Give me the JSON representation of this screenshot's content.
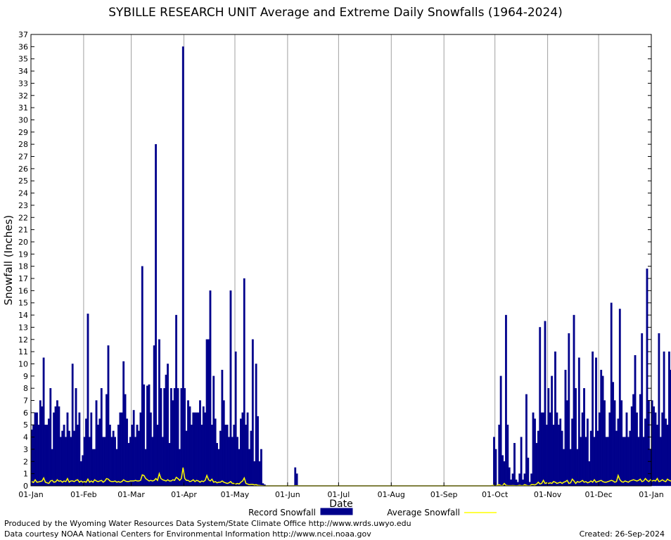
{
  "footer": {
    "left_line1": "Produced by the Wyoming Water Resources Data System/State Climate Office http://www.wrds.uwyo.edu",
    "left_line2": "Data courtesy NOAA National Centers for Environmental Information http://www.ncei.noaa.gov",
    "created": "Created:  26-Sep-2024"
  },
  "chart_data": {
    "type": "bar",
    "title": "SYBILLE RESEARCH UNIT Average and Extreme Daily Snowfalls (1964-2024)",
    "xlabel": "Date",
    "ylabel": "Snowfall (Inches)",
    "ylim": [
      0,
      37
    ],
    "y_ticks": [
      0,
      1,
      2,
      3,
      4,
      5,
      6,
      7,
      8,
      9,
      10,
      11,
      12,
      13,
      14,
      15,
      16,
      17,
      18,
      19,
      20,
      21,
      22,
      23,
      24,
      25,
      26,
      27,
      28,
      29,
      30,
      31,
      32,
      33,
      34,
      35,
      36,
      37
    ],
    "x_tick_labels": [
      "01-Jan",
      "01-Feb",
      "01-Mar",
      "01-Apr",
      "01-May",
      "01-Jun",
      "01-Jul",
      "01-Aug",
      "01-Sep",
      "01-Oct",
      "01-Nov",
      "01-Dec",
      "01-Jan"
    ],
    "x_tick_days": [
      0,
      31,
      59,
      90,
      120,
      151,
      181,
      212,
      243,
      273,
      304,
      334,
      365
    ],
    "grid": true,
    "legend_position": "bottom",
    "colors": {
      "record": "#00008b",
      "average": "#ffff00",
      "grid": "#a0a0a0"
    },
    "series": [
      {
        "name": "Record Snowfall",
        "type": "bar",
        "values": [
          4.6,
          5.0,
          6.0,
          6.0,
          5.0,
          7.0,
          6.5,
          10.5,
          5.0,
          5.0,
          5.5,
          8.0,
          3.0,
          6.0,
          6.5,
          7.0,
          6.5,
          4.0,
          4.5,
          5.0,
          4.0,
          6.0,
          4.5,
          4.0,
          10.0,
          4.5,
          8.0,
          5.0,
          6.0,
          2.0,
          2.5,
          4.0,
          5.5,
          14.1,
          4.0,
          6.0,
          3.0,
          3.0,
          7.0,
          5.0,
          5.5,
          8.0,
          4.0,
          4.0,
          7.5,
          11.5,
          5.0,
          4.0,
          4.5,
          4.0,
          3.0,
          5.0,
          6.0,
          6.0,
          10.2,
          7.5,
          5.5,
          3.5,
          4.0,
          5.0,
          6.2,
          4.0,
          5.0,
          4.5,
          6.0,
          18.0,
          8.3,
          3.0,
          8.2,
          8.3,
          6.0,
          4.0,
          11.5,
          28.0,
          5.0,
          12.0,
          8.0,
          4.0,
          8.0,
          9.1,
          10.0,
          3.5,
          8.0,
          7.0,
          8.0,
          14.0,
          8.0,
          3.0,
          8.0,
          36.0,
          8.0,
          4.5,
          7.0,
          6.5,
          5.0,
          6.0,
          6.0,
          6.0,
          6.0,
          7.0,
          5.0,
          6.5,
          6.0,
          12.0,
          12.0,
          16.0,
          5.0,
          9.0,
          5.5,
          3.5,
          3.0,
          4.5,
          9.5,
          7.0,
          5.0,
          5.0,
          4.0,
          16.0,
          4.0,
          5.0,
          11.0,
          4.0,
          3.0,
          5.5,
          6.0,
          17.0,
          5.0,
          6.0,
          3.0,
          4.5,
          12.0,
          2.0,
          10.0,
          5.7,
          2.0,
          3.0,
          0.2,
          0.1,
          0,
          0,
          0,
          0,
          0,
          0,
          0,
          0,
          0,
          0,
          0,
          0,
          0,
          0,
          0,
          0,
          0,
          1.5,
          1.0,
          0,
          0,
          0,
          0,
          0,
          0,
          0,
          0,
          0,
          0,
          0,
          0,
          0,
          0,
          0,
          0,
          0,
          0,
          0,
          0,
          0,
          0,
          0,
          0,
          0,
          0,
          0,
          0,
          0,
          0,
          0,
          0,
          0,
          0,
          0,
          0,
          0,
          0,
          0,
          0,
          0,
          0,
          0,
          0,
          0,
          0,
          0,
          0,
          0,
          0,
          0,
          0,
          0,
          0,
          0,
          0,
          0,
          0,
          0,
          0,
          0,
          0,
          0,
          0,
          0,
          0,
          0,
          0,
          0,
          0,
          0,
          0,
          0,
          0,
          0,
          0,
          0,
          0,
          0,
          0,
          0,
          0,
          0,
          0,
          0,
          0,
          0,
          0,
          0,
          0,
          0,
          0,
          0,
          0,
          0,
          0,
          0,
          0,
          0,
          0,
          0,
          0,
          0,
          0,
          0,
          0,
          0,
          0,
          0,
          0,
          0,
          0,
          0,
          0,
          0,
          4.0,
          3.0,
          0,
          5.0,
          9.0,
          2.5,
          2.0,
          14.0,
          5.0,
          1.5,
          0.5,
          1.0,
          3.5,
          0.5,
          0.3,
          1.0,
          4.0,
          0.5,
          1.0,
          7.5,
          2.3,
          0.3,
          1.0,
          6.0,
          5.5,
          3.5,
          4.5,
          13.0,
          6.0,
          6.0,
          13.5,
          5.0,
          8.0,
          6.0,
          9.0,
          5.0,
          11.0,
          6.0,
          5.0,
          5.5,
          4.5,
          3.0,
          9.5,
          7.0,
          12.5,
          3.0,
          5.5,
          14.0,
          8.0,
          3.0,
          10.5,
          4.0,
          6.0,
          8.0,
          4.0,
          5.5,
          2.0,
          4.5,
          11.0,
          4.0,
          10.5,
          4.5,
          6.0,
          9.5,
          9.0,
          7.0,
          4.0,
          4.0,
          6.0,
          15.0,
          8.5,
          7.0,
          4.5,
          5.5,
          14.5,
          7.0,
          4.0,
          4.0,
          6.0,
          4.0,
          4.5,
          6.5,
          7.5,
          10.7,
          6.0,
          4.0,
          7.5,
          12.5,
          4.0,
          5.5,
          17.8,
          7.0,
          3.0,
          7.0,
          6.5,
          6.0,
          5.0,
          12.5,
          4.0,
          6.0,
          11.0,
          5.5,
          5.0,
          11.0,
          9.5,
          7.0,
          5.0,
          6.0,
          7.5
        ]
      },
      {
        "name": "Average Snowfall",
        "type": "line",
        "values": [
          0.35,
          0.28,
          0.5,
          0.3,
          0.32,
          0.36,
          0.4,
          0.65,
          0.3,
          0.25,
          0.2,
          0.4,
          0.45,
          0.3,
          0.33,
          0.5,
          0.38,
          0.42,
          0.3,
          0.4,
          0.35,
          0.6,
          0.3,
          0.4,
          0.4,
          0.35,
          0.45,
          0.5,
          0.3,
          0.4,
          0.3,
          0.35,
          0.3,
          0.55,
          0.3,
          0.4,
          0.3,
          0.5,
          0.4,
          0.35,
          0.4,
          0.45,
          0.3,
          0.4,
          0.6,
          0.55,
          0.4,
          0.35,
          0.35,
          0.4,
          0.3,
          0.35,
          0.3,
          0.35,
          0.5,
          0.4,
          0.35,
          0.35,
          0.4,
          0.4,
          0.4,
          0.45,
          0.4,
          0.4,
          0.45,
          0.9,
          0.85,
          0.6,
          0.5,
          0.4,
          0.45,
          0.4,
          0.45,
          0.6,
          0.45,
          1.0,
          0.6,
          0.5,
          0.45,
          0.4,
          0.5,
          0.4,
          0.4,
          0.5,
          0.45,
          0.7,
          0.6,
          0.45,
          0.6,
          1.5,
          0.6,
          0.45,
          0.45,
          0.35,
          0.4,
          0.5,
          0.35,
          0.45,
          0.4,
          0.3,
          0.4,
          0.35,
          0.45,
          0.85,
          0.5,
          0.4,
          0.55,
          0.3,
          0.35,
          0.25,
          0.3,
          0.3,
          0.4,
          0.3,
          0.25,
          0.2,
          0.25,
          0.35,
          0.2,
          0.2,
          0.15,
          0.2,
          0.15,
          0.3,
          0.4,
          0.65,
          0.2,
          0.15,
          0.1,
          0.12,
          0.12,
          0.08,
          0.1,
          0.05,
          0.04,
          0.02,
          0.01,
          0,
          0,
          0,
          0,
          0,
          0,
          0,
          0,
          0,
          0,
          0,
          0,
          0,
          0,
          0,
          0,
          0,
          0,
          0.02,
          0.02,
          0,
          0,
          0,
          0,
          0,
          0,
          0,
          0,
          0,
          0,
          0,
          0,
          0,
          0,
          0,
          0,
          0,
          0,
          0,
          0,
          0,
          0,
          0,
          0,
          0,
          0,
          0,
          0,
          0,
          0,
          0,
          0,
          0,
          0,
          0,
          0,
          0,
          0,
          0,
          0,
          0,
          0,
          0,
          0,
          0,
          0,
          0,
          0,
          0,
          0,
          0,
          0,
          0,
          0,
          0,
          0,
          0,
          0,
          0,
          0,
          0,
          0,
          0,
          0,
          0,
          0,
          0,
          0,
          0,
          0,
          0,
          0,
          0,
          0,
          0,
          0,
          0,
          0,
          0,
          0,
          0,
          0,
          0,
          0,
          0,
          0,
          0,
          0,
          0,
          0,
          0,
          0,
          0,
          0,
          0,
          0,
          0,
          0,
          0,
          0,
          0,
          0,
          0,
          0,
          0,
          0,
          0,
          0,
          0,
          0,
          0,
          0,
          0,
          0,
          0.05,
          0.03,
          0,
          0.05,
          0.1,
          0.03,
          0.02,
          0.2,
          0.05,
          0.03,
          0.02,
          0.02,
          0.03,
          0.02,
          0.01,
          0.02,
          0.05,
          0.02,
          0.02,
          0.1,
          0.05,
          0.01,
          0.02,
          0.1,
          0.1,
          0.08,
          0.15,
          0.3,
          0.15,
          0.2,
          0.45,
          0.2,
          0.25,
          0.2,
          0.25,
          0.2,
          0.35,
          0.3,
          0.2,
          0.25,
          0.3,
          0.2,
          0.3,
          0.35,
          0.45,
          0.2,
          0.25,
          0.55,
          0.4,
          0.2,
          0.35,
          0.3,
          0.35,
          0.45,
          0.3,
          0.35,
          0.25,
          0.3,
          0.4,
          0.3,
          0.5,
          0.3,
          0.35,
          0.4,
          0.45,
          0.35,
          0.3,
          0.3,
          0.35,
          0.4,
          0.45,
          0.4,
          0.3,
          0.35,
          0.85,
          0.5,
          0.35,
          0.3,
          0.4,
          0.35,
          0.3,
          0.4,
          0.45,
          0.5,
          0.45,
          0.4,
          0.45,
          0.55,
          0.35,
          0.4,
          0.6,
          0.45,
          0.35,
          0.5,
          0.4,
          0.45,
          0.4,
          0.6,
          0.35,
          0.4,
          0.5,
          0.4,
          0.35,
          0.55,
          0.45,
          0.4,
          0.45,
          0.45,
          0.5
        ]
      }
    ]
  }
}
